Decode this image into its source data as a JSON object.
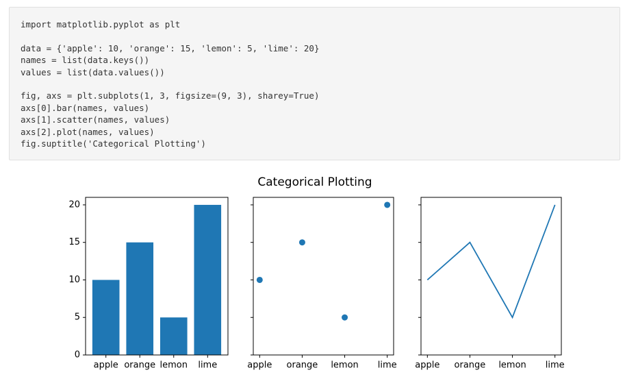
{
  "code": [
    [
      "import matplotlib.pyplot as plt"
    ],
    [
      "data = {'apple': 10, 'orange': 15, 'lemon': 5, 'lime': 20}",
      "names = list(data.keys())",
      "values = list(data.values())"
    ],
    [
      "fig, axs = plt.subplots(1, 3, figsize=(9, 3), sharey=True)",
      "axs[0].bar(names, values)",
      "axs[1].scatter(names, values)",
      "axs[2].plot(names, values)",
      "fig.suptitle('Categorical Plotting')"
    ]
  ],
  "figure": {
    "title": "Categorical Plotting"
  },
  "chart_data": [
    {
      "type": "bar",
      "categories": [
        "apple",
        "orange",
        "lemon",
        "lime"
      ],
      "values": [
        10,
        15,
        5,
        20
      ],
      "color": "#1f77b4",
      "ylim": [
        0,
        21
      ],
      "yticks": [
        0,
        5,
        10,
        15,
        20
      ],
      "ytick_labels": true
    },
    {
      "type": "scatter",
      "categories": [
        "apple",
        "orange",
        "lemon",
        "lime"
      ],
      "values": [
        10,
        15,
        5,
        20
      ],
      "color": "#1f77b4",
      "ylim": [
        0,
        21
      ],
      "yticks": [
        0,
        5,
        10,
        15,
        20
      ],
      "ytick_labels": false
    },
    {
      "type": "line",
      "categories": [
        "apple",
        "orange",
        "lemon",
        "lime"
      ],
      "values": [
        10,
        15,
        5,
        20
      ],
      "color": "#1f77b4",
      "ylim": [
        0,
        21
      ],
      "yticks": [
        0,
        5,
        10,
        15,
        20
      ],
      "ytick_labels": false
    }
  ]
}
